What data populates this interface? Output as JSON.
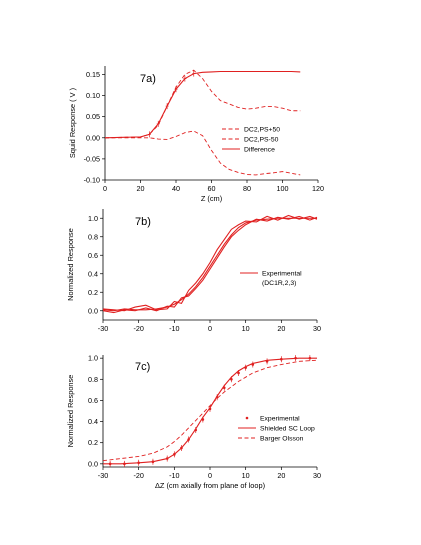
{
  "chart_data": [
    {
      "type": "line",
      "panel_label": "7a)",
      "xlabel": "Z  (cm)",
      "ylabel": "Squid Response  ( V )",
      "xlim": [
        0,
        120
      ],
      "ylim": [
        -0.1,
        0.17
      ],
      "xticks": [
        0,
        20,
        40,
        60,
        80,
        100,
        120
      ],
      "yticks": [
        -0.1,
        -0.05,
        0.0,
        0.05,
        0.1,
        0.15
      ],
      "ytick_labels": [
        "-0.10",
        "-0.05",
        "0.00",
        "0.05",
        "0.10",
        "0.15"
      ],
      "color": "#e02020",
      "legend_position": "lower-right",
      "series": [
        {
          "name": "DC2,PS+50",
          "style": "dashed",
          "x": [
            0,
            20,
            25,
            30,
            35,
            40,
            45,
            50,
            55,
            60,
            65,
            70,
            75,
            80,
            85,
            90,
            95,
            100,
            105,
            110
          ],
          "y": [
            0.0,
            0.002,
            0.008,
            0.03,
            0.075,
            0.12,
            0.15,
            0.16,
            0.14,
            0.11,
            0.088,
            0.08,
            0.072,
            0.068,
            0.07,
            0.074,
            0.074,
            0.07,
            0.064,
            0.064
          ]
        },
        {
          "name": "DC2,PS-50",
          "style": "dashed",
          "x": [
            0,
            20,
            25,
            30,
            35,
            40,
            45,
            50,
            55,
            60,
            65,
            70,
            75,
            80,
            85,
            90,
            95,
            100,
            105,
            110
          ],
          "y": [
            0.0,
            0.0,
            0.0,
            -0.003,
            -0.004,
            0.003,
            0.012,
            0.016,
            0.005,
            -0.03,
            -0.06,
            -0.075,
            -0.082,
            -0.087,
            -0.088,
            -0.085,
            -0.083,
            -0.08,
            -0.084,
            -0.088
          ]
        },
        {
          "name": "Difference",
          "style": "solid",
          "x": [
            0,
            20,
            25,
            30,
            35,
            40,
            45,
            50,
            55,
            60,
            65,
            70,
            75,
            80,
            85,
            90,
            95,
            100,
            105,
            110
          ],
          "y": [
            0.0,
            0.002,
            0.008,
            0.033,
            0.075,
            0.115,
            0.14,
            0.152,
            0.155,
            0.156,
            0.157,
            0.157,
            0.157,
            0.157,
            0.157,
            0.157,
            0.157,
            0.157,
            0.157,
            0.156
          ]
        }
      ]
    },
    {
      "type": "line",
      "panel_label": "7b)",
      "xlabel": "",
      "ylabel": "Normalized Response",
      "xlim": [
        -30,
        30
      ],
      "ylim": [
        -0.1,
        1.1
      ],
      "xticks": [
        -30,
        -20,
        -10,
        0,
        10,
        20,
        30
      ],
      "yticks": [
        0.0,
        0.2,
        0.4,
        0.6,
        0.8,
        1.0
      ],
      "ytick_labels": [
        "0.0",
        "0.2",
        "0.4",
        "0.6",
        "0.8",
        "1.0"
      ],
      "color": "#e02020",
      "legend_position": "right",
      "legend_entry": "Experimental",
      "legend_sub": "(DC1R,2,3)",
      "series": [
        {
          "name": "Experimental",
          "style": "solid",
          "x": [
            -30,
            -27,
            -24,
            -21,
            -18,
            -15,
            -12,
            -10,
            -8,
            -6,
            -4,
            -2,
            0,
            2,
            4,
            6,
            8,
            10,
            13,
            16,
            19,
            22,
            25,
            28,
            30
          ],
          "y": [
            0.01,
            0.0,
            0.02,
            0.01,
            0.01,
            0.02,
            0.04,
            0.07,
            0.12,
            0.18,
            0.26,
            0.36,
            0.48,
            0.6,
            0.72,
            0.82,
            0.9,
            0.95,
            0.98,
            0.99,
            1.0,
            1.0,
            1.0,
            1.0,
            1.0
          ]
        },
        {
          "name": "",
          "style": "solid",
          "x": [
            -30,
            -27,
            -24,
            -21,
            -18,
            -15,
            -12,
            -10,
            -8,
            -6,
            -4,
            -2,
            0,
            2,
            4,
            6,
            8,
            10,
            13,
            16,
            19,
            22,
            25,
            28,
            30
          ],
          "y": [
            0.02,
            0.01,
            0.0,
            0.04,
            0.06,
            0.01,
            0.02,
            0.1,
            0.08,
            0.22,
            0.3,
            0.4,
            0.52,
            0.66,
            0.77,
            0.88,
            0.93,
            0.97,
            0.96,
            1.02,
            0.98,
            1.03,
            0.99,
            1.02,
            0.99
          ]
        },
        {
          "name": "",
          "style": "solid",
          "x": [
            -30,
            -27,
            -24,
            -21,
            -18,
            -15,
            -12,
            -10,
            -8,
            -6,
            -4,
            -2,
            0,
            2,
            4,
            6,
            8,
            10,
            13,
            16,
            19,
            22,
            25,
            28,
            30
          ],
          "y": [
            0.0,
            -0.02,
            0.01,
            0.0,
            0.03,
            0.0,
            0.05,
            0.04,
            0.14,
            0.16,
            0.24,
            0.33,
            0.45,
            0.57,
            0.69,
            0.8,
            0.87,
            0.93,
            0.99,
            0.97,
            1.01,
            0.99,
            1.02,
            0.98,
            1.01
          ]
        }
      ]
    },
    {
      "type": "line",
      "panel_label": "7c)",
      "xlabel": "ΔZ  (cm axially from plane of loop)",
      "ylabel": "Normalized Response",
      "xlim": [
        -30,
        30
      ],
      "ylim": [
        -0.03,
        1.03
      ],
      "xticks": [
        -30,
        -20,
        -10,
        0,
        10,
        20,
        30
      ],
      "yticks": [
        0.0,
        0.2,
        0.4,
        0.6,
        0.8,
        1.0
      ],
      "ytick_labels": [
        "0.0",
        "0.2",
        "0.4",
        "0.6",
        "0.8",
        "1.0"
      ],
      "color": "#e02020",
      "legend_position": "lower-right",
      "series": [
        {
          "name": "Experimental",
          "style": "points",
          "x": [
            -28,
            -24,
            -20,
            -16,
            -12,
            -10,
            -8,
            -6,
            -4,
            -2,
            0,
            2,
            4,
            6,
            8,
            10,
            12,
            16,
            20,
            24,
            28
          ],
          "y": [
            0.0,
            0.0,
            0.01,
            0.02,
            0.05,
            0.09,
            0.15,
            0.23,
            0.32,
            0.42,
            0.52,
            0.63,
            0.72,
            0.8,
            0.86,
            0.91,
            0.94,
            0.97,
            0.99,
            1.0,
            1.0
          ]
        },
        {
          "name": "Shielded SC Loop",
          "style": "solid",
          "x": [
            -30,
            -25,
            -20,
            -16,
            -12,
            -10,
            -8,
            -6,
            -4,
            -2,
            0,
            2,
            4,
            6,
            8,
            10,
            12,
            16,
            20,
            25,
            30
          ],
          "y": [
            0.0,
            0.0,
            0.01,
            0.02,
            0.05,
            0.09,
            0.15,
            0.23,
            0.33,
            0.44,
            0.53,
            0.64,
            0.74,
            0.82,
            0.88,
            0.92,
            0.95,
            0.98,
            0.99,
            1.0,
            1.0
          ]
        },
        {
          "name": "Barger Olsson",
          "style": "dashed",
          "x": [
            -30,
            -25,
            -20,
            -16,
            -12,
            -10,
            -8,
            -6,
            -4,
            -2,
            0,
            2,
            4,
            6,
            8,
            10,
            12,
            16,
            20,
            25,
            30
          ],
          "y": [
            0.03,
            0.05,
            0.07,
            0.1,
            0.16,
            0.21,
            0.27,
            0.34,
            0.41,
            0.48,
            0.55,
            0.62,
            0.68,
            0.73,
            0.78,
            0.82,
            0.86,
            0.91,
            0.94,
            0.97,
            0.98
          ]
        }
      ]
    }
  ]
}
